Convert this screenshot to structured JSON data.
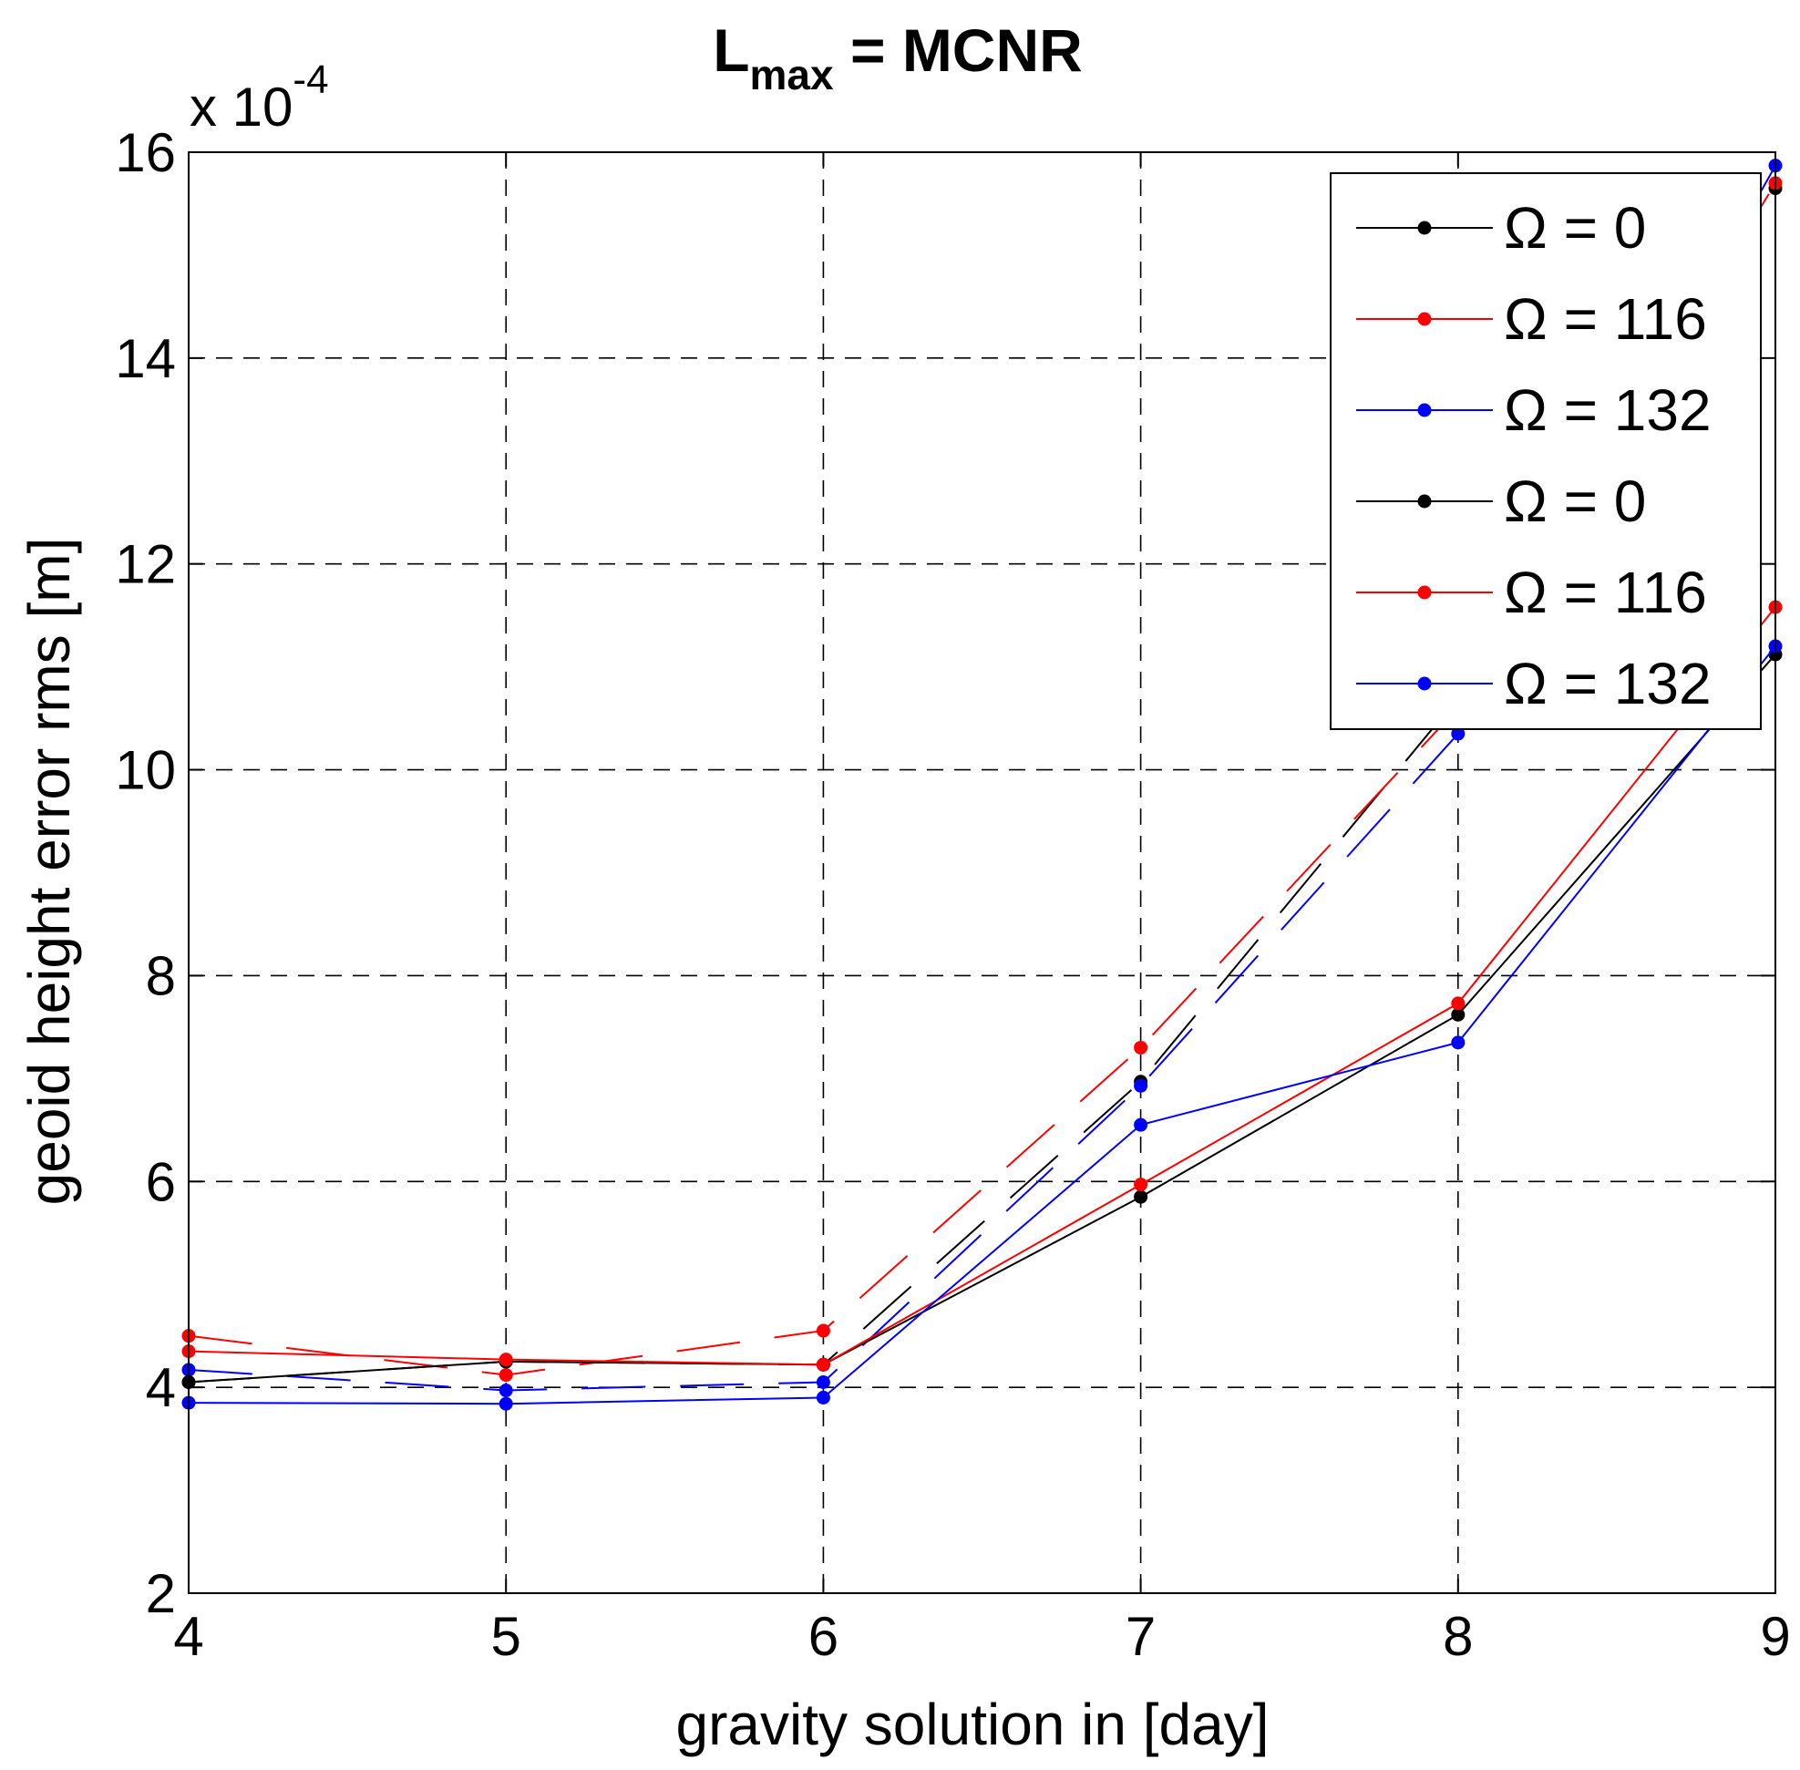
{
  "chart_data": {
    "type": "line",
    "title_main": "L",
    "title_sub": "max",
    "title_rest": " = MCNR",
    "xlabel": "gravity solution in [day]",
    "ylabel": "geoid height error rms [m]",
    "exponent_prefix": "x 10",
    "exponent_power": "-4",
    "xlim": [
      4,
      9
    ],
    "ylim": [
      2,
      16
    ],
    "xticks": [
      4,
      5,
      6,
      7,
      8,
      9
    ],
    "yticks": [
      2,
      4,
      6,
      8,
      10,
      12,
      14,
      16
    ],
    "xtick_labels": [
      "4",
      "5",
      "6",
      "7",
      "8",
      "9"
    ],
    "ytick_labels": [
      "2",
      "4",
      "6",
      "8",
      "10",
      "12",
      "14",
      "16"
    ],
    "grid": true,
    "legend_position": "top-right",
    "x": [
      4,
      5,
      6,
      7,
      8,
      9
    ],
    "series": [
      {
        "name": "Ω = 0",
        "color": "#000000",
        "style": "dashed",
        "values": [
          4.05,
          4.25,
          4.22,
          6.97,
          10.7,
          15.65
        ]
      },
      {
        "name": "Ω = 116",
        "color": "#ff0000",
        "style": "dashed",
        "values": [
          4.5,
          4.12,
          4.55,
          7.3,
          10.6,
          15.7
        ]
      },
      {
        "name": "Ω = 132",
        "color": "#0000ff",
        "style": "dashed",
        "values": [
          4.17,
          3.97,
          4.05,
          6.93,
          10.35,
          15.87
        ]
      },
      {
        "name": "Ω = 0",
        "color": "#000000",
        "style": "solid",
        "values": [
          4.05,
          4.25,
          4.22,
          5.85,
          7.62,
          11.12
        ]
      },
      {
        "name": "Ω = 116",
        "color": "#ff0000",
        "style": "solid",
        "values": [
          4.35,
          4.27,
          4.22,
          5.97,
          7.73,
          11.58
        ]
      },
      {
        "name": "Ω = 132",
        "color": "#0000ff",
        "style": "solid",
        "values": [
          3.85,
          3.84,
          3.9,
          6.55,
          7.35,
          11.2
        ]
      }
    ]
  }
}
